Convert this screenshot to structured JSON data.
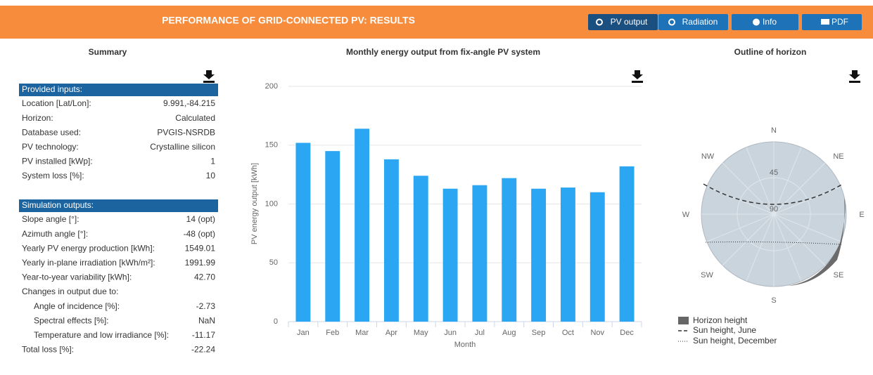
{
  "header": {
    "title": "PERFORMANCE OF GRID-CONNECTED PV: RESULTS",
    "buttons": [
      "PV output",
      "Radiation",
      "Info",
      "PDF"
    ]
  },
  "summary": {
    "title": "Summary",
    "provided_inputs": {
      "title": "Provided inputs:",
      "rows": [
        {
          "label": "Location [Lat/Lon]:",
          "value": "9.991,-84.215"
        },
        {
          "label": "Horizon:",
          "value": "Calculated"
        },
        {
          "label": "Database used:",
          "value": "PVGIS-NSRDB"
        },
        {
          "label": "PV technology:",
          "value": "Crystalline silicon"
        },
        {
          "label": "PV installed [kWp]:",
          "value": "1"
        },
        {
          "label": "System loss [%]:",
          "value": "10"
        }
      ]
    },
    "simulation_outputs": {
      "title": "Simulation outputs:",
      "rows": [
        {
          "label": "Slope angle [°]:",
          "value": "14 (opt)"
        },
        {
          "label": "Azimuth angle [°]:",
          "value": "-48 (opt)"
        },
        {
          "label": "Yearly PV energy production [kWh]:",
          "value": "1549.01"
        },
        {
          "label": "Yearly in-plane irradiation [kWh/m²]:",
          "value": "1991.99"
        },
        {
          "label": "Year-to-year variability [kWh]:",
          "value": "42.70"
        }
      ],
      "changes": {
        "title": "Changes in output due to:",
        "rows": [
          {
            "label": "Angle of incidence [%]:",
            "value": "-2.73"
          },
          {
            "label": "Spectral effects [%]:",
            "value": "NaN"
          },
          {
            "label": "Temperature and low irradiance [%]:",
            "value": "-11.17"
          }
        ]
      },
      "total": {
        "label": "Total loss [%]:",
        "value": "-22.24"
      }
    }
  },
  "chart_data": {
    "type": "bar",
    "title": "Monthly energy output from fix-angle PV system",
    "x_label": "Month",
    "y_label": "PV energy output [kWh]",
    "categories": [
      "Jan",
      "Feb",
      "Mar",
      "Apr",
      "May",
      "Jun",
      "Jul",
      "Aug",
      "Sep",
      "Oct",
      "Nov",
      "Dec"
    ],
    "values": [
      152,
      145,
      164,
      138,
      124,
      113,
      116,
      122,
      113,
      114,
      110,
      132
    ],
    "color": "#2ba6f2",
    "ylim": [
      0,
      200
    ],
    "yticks": [
      0,
      50,
      100,
      150,
      200
    ],
    "grid": true
  },
  "horizon": {
    "title": "Outline of horizon",
    "directions": {
      "N": "N",
      "NE": "NE",
      "E": "E",
      "SE": "SE",
      "S": "S",
      "SW": "SW",
      "W": "W",
      "NW": "NW"
    },
    "rings": [
      "45",
      "90"
    ],
    "legend": [
      "Horizon height",
      "Sun height, June",
      "Sun height, December"
    ]
  }
}
